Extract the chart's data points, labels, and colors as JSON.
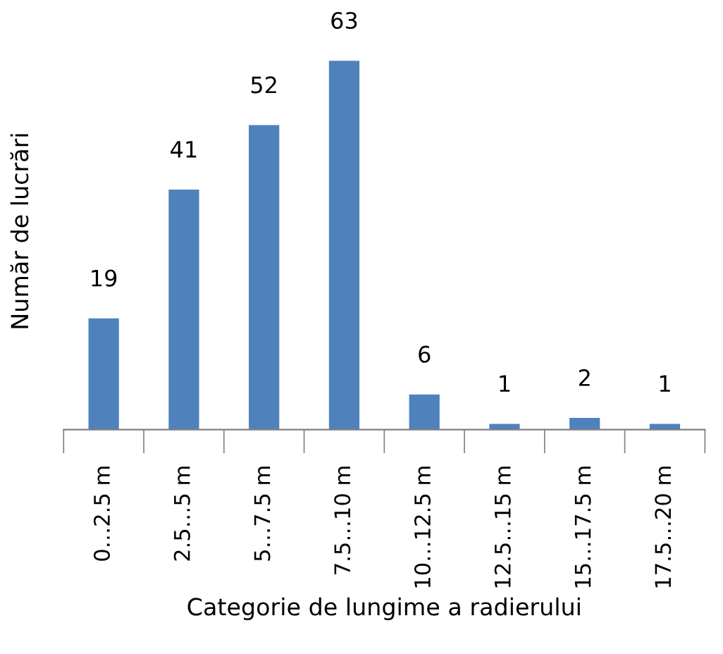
{
  "chart_data": {
    "type": "bar",
    "xlabel": "Categorie de lungime a radierului",
    "ylabel": "Număr de lucrări",
    "categories": [
      "0…2.5 m",
      "2.5…5 m",
      "5…7.5 m",
      "7.5…10 m",
      "10…12.5 m",
      "12.5…15 m",
      "15…17.5 m",
      "17.5…20 m"
    ],
    "values": [
      19,
      41,
      52,
      63,
      6,
      1,
      2,
      1
    ],
    "color": "#4f81bd",
    "data_labels": true,
    "tick_labels": "x",
    "grid": false,
    "legend": false
  }
}
